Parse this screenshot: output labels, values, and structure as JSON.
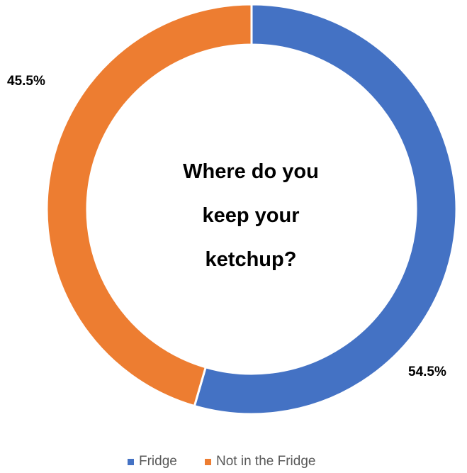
{
  "chart_data": {
    "type": "pie",
    "subtype": "donut",
    "title": "",
    "center_text": [
      "Where do you",
      "keep your",
      "ketchup?"
    ],
    "series": [
      {
        "name": "Fridge",
        "value": 54.5,
        "label": "54.5%",
        "color": "#4472C4"
      },
      {
        "name": "Not in the Fridge",
        "value": 45.5,
        "label": "45.5%",
        "color": "#ED7D31"
      }
    ],
    "start_angle_deg": 0,
    "direction": "clockwise",
    "legend": {
      "position": "bottom",
      "entries": [
        "Fridge",
        "Not in the Fridge"
      ]
    },
    "slice_border_color": "#ffffff"
  }
}
